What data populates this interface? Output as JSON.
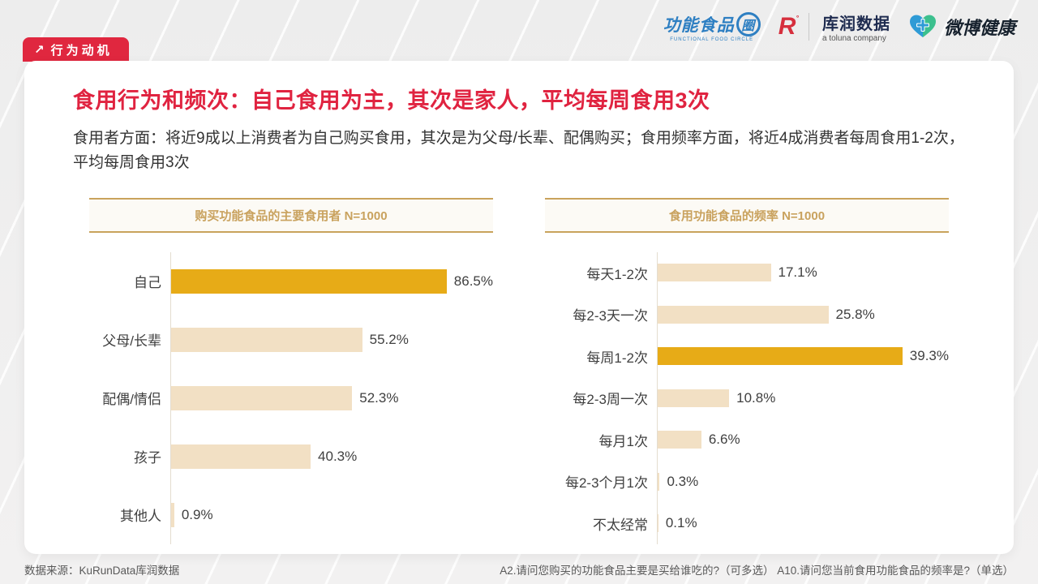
{
  "page": {
    "badge": {
      "label": "行为动机",
      "icon": "arrow-up-right"
    },
    "logos": {
      "ffc": {
        "text": "功能食品",
        "circle_char": "圈",
        "subtext": "FUNCTIONAL FOOD CIRCLE"
      },
      "kurun": {
        "mark": "R",
        "reg": "°",
        "text": "库润数据",
        "subtext": "a toluna company"
      },
      "weibo": {
        "text": "微博健康"
      }
    },
    "title": "食用行为和频次：自己食用为主，其次是家人，平均每周食用3次",
    "subtitle": "食用者方面：将近9成以上消费者为自己购买食用，其次是为父母/长辈、配偶购买；食用频率方面，将近4成消费者每周食用1-2次，平均每周食用3次",
    "footer": {
      "source": "数据来源：KuRunData库润数据",
      "questions": "A2.请问您购买的功能食品主要是买给谁吃的?（可多选）  A10.请问您当前食用功能食品的频率是?（单选）"
    }
  },
  "colors": {
    "accent_red": "#E02340",
    "bar_highlight": "#E7AB17",
    "bar_normal": "#F2E0C4",
    "header_gold": "#C9A25E",
    "gold_line": "#C9A35C"
  },
  "chart_data": [
    {
      "type": "bar",
      "orientation": "horizontal",
      "title": "购买功能食品的主要食用者 N=1000",
      "categories": [
        "自己",
        "父母/长辈",
        "配偶/情侣",
        "孩子",
        "其他人"
      ],
      "values": [
        86.5,
        55.2,
        52.3,
        40.3,
        0.9
      ],
      "labels": [
        "86.5%",
        "55.2%",
        "52.3%",
        "40.3%",
        "0.9%"
      ],
      "highlight_index": 0,
      "axis_max": 93,
      "grid": false,
      "legend": "none"
    },
    {
      "type": "bar",
      "orientation": "horizontal",
      "title": "食用功能食品的频率 N=1000",
      "categories": [
        "每天1-2次",
        "每2-3天一次",
        "每周1-2次",
        "每2-3周一次",
        "每月1次",
        "每2-3个月1次",
        "不太经常"
      ],
      "values": [
        17.1,
        25.8,
        39.3,
        10.8,
        6.6,
        0.3,
        0.1
      ],
      "labels": [
        "17.1%",
        "25.8%",
        "39.3%",
        "10.8%",
        "6.6%",
        "0.3%",
        "0.1%"
      ],
      "highlight_index": 2,
      "axis_max": 44,
      "grid": false,
      "legend": "none"
    }
  ]
}
